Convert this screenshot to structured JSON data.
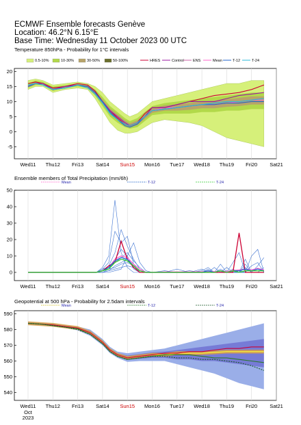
{
  "header": {
    "title": "ECMWF Ensemble forecasts Genève",
    "location": "Location:  46.2°N 6.15°E",
    "base_time": "Base Time: Wednesday 11 October 2023 00 UTC"
  },
  "colors": {
    "band_0_10": "#d6f07a",
    "band_10_30": "#b2d94a",
    "band_30_50": "#b8a46a",
    "band_50_100": "#6b6f2e",
    "hres": "#cc0033",
    "control": "#9a1aa0",
    "ens": "#cc66aa",
    "mean": "#ff66cc",
    "t12": "#2266cc",
    "t24": "#2ab8d8",
    "gh_band": "#9aaee8",
    "gh_core": "#6a6ad0"
  },
  "days": [
    "Wed11",
    "Thu12",
    "Fri13",
    "Sat14",
    "Sun15",
    "Mon16",
    "Tue17",
    "Wed18",
    "Thu19",
    "Fri20",
    "Sat21"
  ],
  "bottom_date": {
    "month": "Oct",
    "year": "2023"
  },
  "chart_data": [
    {
      "type": "area",
      "title": "Temperature 850hPa - Probability for 1°C intervals",
      "ylim": [
        -9,
        21
      ],
      "yticks": [
        -5,
        0,
        5,
        10,
        15,
        20
      ],
      "legend": [
        "0.5-10%",
        "10-30%",
        "30-50%",
        "50-100%",
        "HRES",
        "Control",
        "ENS",
        "Mean",
        "T-12",
        "T-24"
      ],
      "x_days": [
        0,
        0.3,
        0.6,
        1,
        1.5,
        2,
        2.4,
        2.7,
        3,
        3.3,
        3.6,
        3.9,
        4.1,
        4.4,
        4.7,
        5,
        5.5,
        6,
        6.5,
        7,
        7.5,
        8,
        8.5,
        9,
        9.5
      ],
      "series": [
        {
          "name": "Mean",
          "values": [
            15,
            16,
            16,
            14,
            15,
            15.5,
            15,
            13,
            10,
            7,
            5,
            3,
            2,
            3,
            5,
            7,
            8,
            8,
            8.5,
            9,
            9,
            9.5,
            10,
            10.5,
            10.5
          ]
        },
        {
          "name": "HRES",
          "values": [
            16,
            16.5,
            16,
            14.5,
            15,
            16,
            15.5,
            13.5,
            10,
            7,
            4.5,
            2.5,
            2,
            3,
            6,
            8,
            8,
            9,
            10,
            11,
            12,
            12.5,
            13,
            14,
            15.5
          ]
        },
        {
          "name": "Control",
          "values": [
            15,
            16,
            16,
            14,
            15,
            15.5,
            15,
            13,
            10,
            7,
            5,
            3,
            2,
            3,
            5,
            8,
            8,
            9,
            10,
            10,
            10,
            11,
            12,
            12.5,
            13
          ]
        },
        {
          "name": "T-12",
          "values": [
            15,
            16,
            15.5,
            14,
            14.5,
            15.5,
            15,
            13,
            10,
            6.5,
            4,
            2,
            1.5,
            2.5,
            5,
            7,
            7.5,
            8,
            8.5,
            9,
            9,
            9.5,
            9.5,
            10,
            10
          ]
        },
        {
          "name": "T-24",
          "values": [
            15.5,
            16,
            15.5,
            14,
            14.5,
            15.5,
            14.5,
            12.5,
            9.5,
            6,
            4,
            2.5,
            2,
            3,
            5,
            7,
            7.5,
            8,
            8.5,
            9,
            9.5,
            10,
            10,
            10.5,
            11
          ]
        }
      ],
      "band_outer_low": [
        14,
        15,
        15,
        13,
        14,
        14.5,
        14,
        11,
        7,
        3,
        0.5,
        -0.5,
        -0.5,
        0,
        1.5,
        3,
        4,
        3.5,
        3,
        2,
        0,
        -2,
        -3,
        -4,
        -5
      ],
      "band_outer_high": [
        17,
        17.5,
        17,
        15.5,
        16,
        16.5,
        16,
        15,
        13,
        10,
        8,
        6,
        5,
        6,
        8,
        10,
        11,
        12,
        13,
        14,
        15,
        16,
        16,
        17,
        17
      ],
      "band_inner_low": [
        14.5,
        15.5,
        15.5,
        13.5,
        14.5,
        15,
        14.5,
        12,
        8.5,
        5,
        3,
        1.5,
        1,
        1.5,
        3.5,
        5.5,
        6,
        6,
        6,
        6.5,
        6.5,
        7,
        7,
        7.5,
        7.5
      ],
      "band_inner_high": [
        16,
        17,
        16.5,
        15,
        15.5,
        16,
        15.5,
        14,
        11.5,
        8.5,
        6.5,
        4.5,
        3.5,
        4.5,
        6.5,
        8.5,
        9.5,
        10,
        10.5,
        11,
        11.5,
        12,
        12.5,
        13,
        13
      ]
    },
    {
      "type": "line",
      "title": "Ensemble members of Total Precipitation (mm/6h)",
      "ylim": [
        -5,
        50
      ],
      "yticks": [
        0,
        10,
        20,
        30,
        40,
        50
      ],
      "legend": [
        "Mean",
        "T-12",
        "T-24"
      ],
      "x_days": [
        0,
        1,
        2,
        2.75,
        3,
        3.25,
        3.5,
        3.75,
        4,
        4.25,
        4.5,
        4.75,
        5,
        5.5,
        6,
        6.5,
        7,
        7.25,
        7.5,
        7.75,
        8,
        8.25,
        8.5,
        8.75,
        9,
        9.25,
        9.5
      ],
      "members": [
        {
          "values": [
            0,
            0,
            0,
            0,
            3,
            10,
            44,
            12,
            3,
            0,
            0,
            0,
            0,
            0,
            0,
            0,
            0,
            0,
            0,
            0,
            0,
            0,
            0,
            0,
            0,
            0,
            0
          ]
        },
        {
          "values": [
            0,
            0,
            0,
            0,
            2,
            6,
            25,
            18,
            22,
            5,
            0,
            0,
            0,
            0,
            0,
            0,
            0,
            0,
            0,
            0,
            0,
            0,
            0,
            0,
            0,
            0,
            0
          ]
        },
        {
          "values": [
            0,
            0,
            0,
            0,
            1,
            4,
            12,
            26,
            16,
            8,
            2,
            0,
            0,
            0,
            0,
            0,
            1,
            3,
            0,
            0,
            0,
            0,
            0,
            0,
            0,
            0,
            0
          ]
        },
        {
          "values": [
            0,
            0,
            0,
            0,
            0,
            2,
            8,
            14,
            10,
            18,
            6,
            1,
            0,
            0,
            0,
            0,
            0,
            0,
            0,
            0,
            0,
            2,
            0,
            3,
            0,
            0,
            0
          ]
        },
        {
          "values": [
            0,
            0,
            0,
            0,
            2,
            3,
            6,
            9,
            12,
            7,
            3,
            0,
            0,
            0,
            2,
            0,
            0,
            0,
            0,
            0,
            0,
            6,
            12,
            0,
            0,
            0,
            0
          ]
        },
        {
          "values": [
            0,
            0,
            0,
            0,
            0,
            1,
            4,
            6,
            8,
            3,
            1,
            0,
            0,
            1,
            0,
            0,
            0,
            2,
            0,
            5,
            0,
            0,
            0,
            0,
            10,
            14,
            0
          ]
        },
        {
          "values": [
            0,
            0,
            0,
            0,
            1,
            2,
            3,
            5,
            6,
            4,
            1,
            0,
            0,
            0,
            0,
            1,
            0,
            0,
            3,
            0,
            1,
            0,
            0,
            8,
            0,
            4,
            9
          ]
        },
        {
          "values": [
            0,
            0,
            0,
            0,
            0,
            1,
            2,
            3,
            4,
            3,
            0,
            0,
            0,
            0,
            0,
            0,
            2,
            0,
            0,
            0,
            3,
            0,
            1,
            0,
            4,
            6,
            0
          ]
        },
        {
          "values": [
            0,
            0,
            0,
            0,
            0,
            0,
            1,
            2,
            10,
            2,
            0,
            0,
            0,
            0,
            0,
            0,
            0,
            0,
            0,
            2,
            0,
            0,
            0,
            5,
            0,
            0,
            3
          ]
        }
      ],
      "series": [
        {
          "name": "Mean",
          "values": [
            0,
            0,
            0,
            0,
            1,
            3,
            8,
            10,
            9,
            5,
            2,
            0,
            0,
            0.3,
            0.3,
            0.3,
            0.4,
            0.8,
            0.5,
            0.8,
            0.6,
            1.2,
            1.5,
            2,
            1.5,
            2.5,
            1.5
          ]
        },
        {
          "name": "HRES",
          "values": [
            0,
            0,
            0,
            0,
            1,
            4,
            6,
            19,
            8,
            3,
            0,
            0,
            0,
            0,
            0,
            0,
            0,
            0,
            0,
            0,
            0,
            0,
            24,
            0,
            0,
            0,
            0
          ]
        },
        {
          "name": "T-12",
          "values": [
            0,
            0,
            0,
            0,
            1,
            3,
            7,
            9,
            8,
            4,
            1,
            0,
            0,
            0,
            0,
            0,
            0,
            1,
            0,
            1,
            0,
            1,
            1,
            2,
            1,
            2,
            1
          ]
        },
        {
          "name": "T-24",
          "values": [
            0,
            0,
            0,
            0,
            1,
            2,
            6,
            8,
            7,
            4,
            1,
            0,
            0,
            0,
            0,
            0,
            0,
            0,
            0,
            1,
            0,
            1,
            0,
            1,
            1,
            1,
            1
          ]
        }
      ]
    },
    {
      "type": "area",
      "title": "Geopotential at 500 hPa - Probability for 2.5dam intervals",
      "ylim": [
        535,
        592
      ],
      "yticks": [
        540,
        550,
        560,
        570,
        580,
        590
      ],
      "legend": [
        "Mean",
        "T-12",
        "T-24"
      ],
      "x_days": [
        0,
        0.5,
        1,
        1.5,
        2,
        2.5,
        3,
        3.3,
        3.6,
        4,
        4.5,
        5,
        5.5,
        6,
        6.5,
        7,
        7.5,
        8,
        8.5,
        9,
        9.5
      ],
      "series": [
        {
          "name": "Mean",
          "values": [
            584,
            583.5,
            583,
            582,
            581,
            578,
            572,
            567,
            564,
            562,
            563,
            564,
            564,
            565,
            565,
            565,
            565.5,
            566,
            566,
            566,
            566
          ]
        },
        {
          "name": "HRES",
          "values": [
            584,
            583.5,
            583,
            582,
            581,
            578,
            572,
            567,
            564,
            562,
            563,
            564,
            565,
            565,
            566,
            566,
            567,
            568,
            568,
            569,
            569
          ]
        },
        {
          "name": "T-12",
          "values": [
            584,
            583.5,
            582.5,
            581.5,
            580.5,
            577,
            571,
            566,
            563,
            561,
            562,
            563,
            564,
            564,
            564,
            563,
            562,
            562,
            561,
            560,
            559
          ]
        },
        {
          "name": "T-24",
          "values": [
            584,
            583.5,
            582.5,
            581.5,
            580,
            577,
            571,
            566,
            563,
            561,
            562,
            563,
            563,
            562,
            562,
            561,
            561,
            560,
            559,
            557,
            554
          ]
        }
      ],
      "band_outer_low": [
        583,
        582.5,
        582,
        581,
        579.5,
        576,
        570,
        565,
        562,
        559.5,
        560,
        560,
        560,
        558,
        556,
        554,
        552,
        549,
        546,
        544,
        542
      ],
      "band_outer_high": [
        585,
        584.5,
        584,
        583,
        582,
        580,
        574,
        569,
        566,
        565,
        566,
        567,
        568,
        570,
        572,
        574,
        576,
        578,
        580,
        582,
        584
      ],
      "band_inner_low": [
        583.5,
        583,
        582.5,
        581.5,
        580.5,
        577,
        571,
        566,
        563,
        561,
        561.5,
        562,
        562,
        561,
        561,
        560,
        560,
        559,
        558,
        557,
        556
      ],
      "band_inner_high": [
        584.5,
        584,
        583.5,
        582.5,
        581.5,
        579,
        573,
        568,
        565,
        563.5,
        564.5,
        565.5,
        566,
        567,
        568,
        569,
        570,
        571,
        572,
        573,
        574
      ]
    }
  ]
}
